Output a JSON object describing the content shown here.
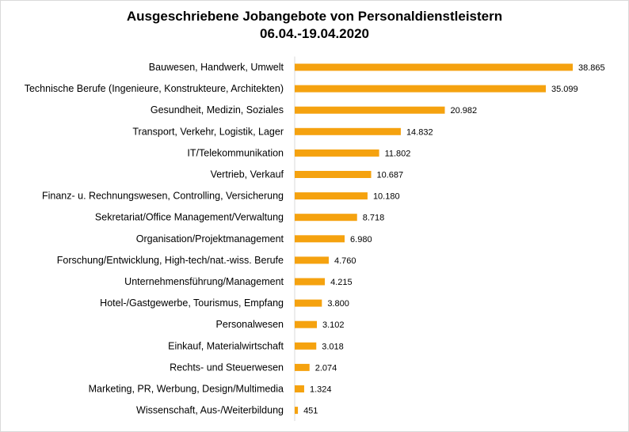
{
  "chart_data": {
    "type": "bar",
    "orientation": "horizontal",
    "title": "Ausgeschriebene Jobangebote von Personaldienstleistern",
    "subtitle": "06.04.-19.04.2020",
    "xlabel": "",
    "ylabel": "",
    "grid": false,
    "legend": "none",
    "xlim": [
      0,
      38865
    ],
    "bar_color": "#f5a20f",
    "categories": [
      "Bauwesen, Handwerk, Umwelt",
      "Technische Berufe (Ingenieure, Konstrukteure, Architekten)",
      "Gesundheit, Medizin, Soziales",
      "Transport, Verkehr, Logistik, Lager",
      "IT/Telekommunikation",
      "Vertrieb, Verkauf",
      "Finanz- u. Rechnungswesen, Controlling, Versicherung",
      "Sekretariat/Office Management/Verwaltung",
      "Organisation/Projektmanagement",
      "Forschung/Entwicklung, High-tech/nat.-wiss. Berufe",
      "Unternehmensführung/Management",
      "Hotel-/Gastgewerbe, Tourismus, Empfang",
      "Personalwesen",
      "Einkauf, Materialwirtschaft",
      "Rechts- und Steuerwesen",
      "Marketing, PR, Werbung, Design/Multimedia",
      "Wissenschaft, Aus-/Weiterbildung"
    ],
    "values": [
      38865,
      35099,
      20982,
      14832,
      11802,
      10687,
      10180,
      8718,
      6980,
      4760,
      4215,
      3800,
      3102,
      3018,
      2074,
      1324,
      451
    ],
    "value_labels": [
      "38.865",
      "35.099",
      "20.982",
      "14.832",
      "11.802",
      "10.687",
      "10.180",
      "8.718",
      "6.980",
      "4.760",
      "4.215",
      "3.800",
      "3.102",
      "3.018",
      "2.074",
      "1.324",
      "451"
    ]
  }
}
